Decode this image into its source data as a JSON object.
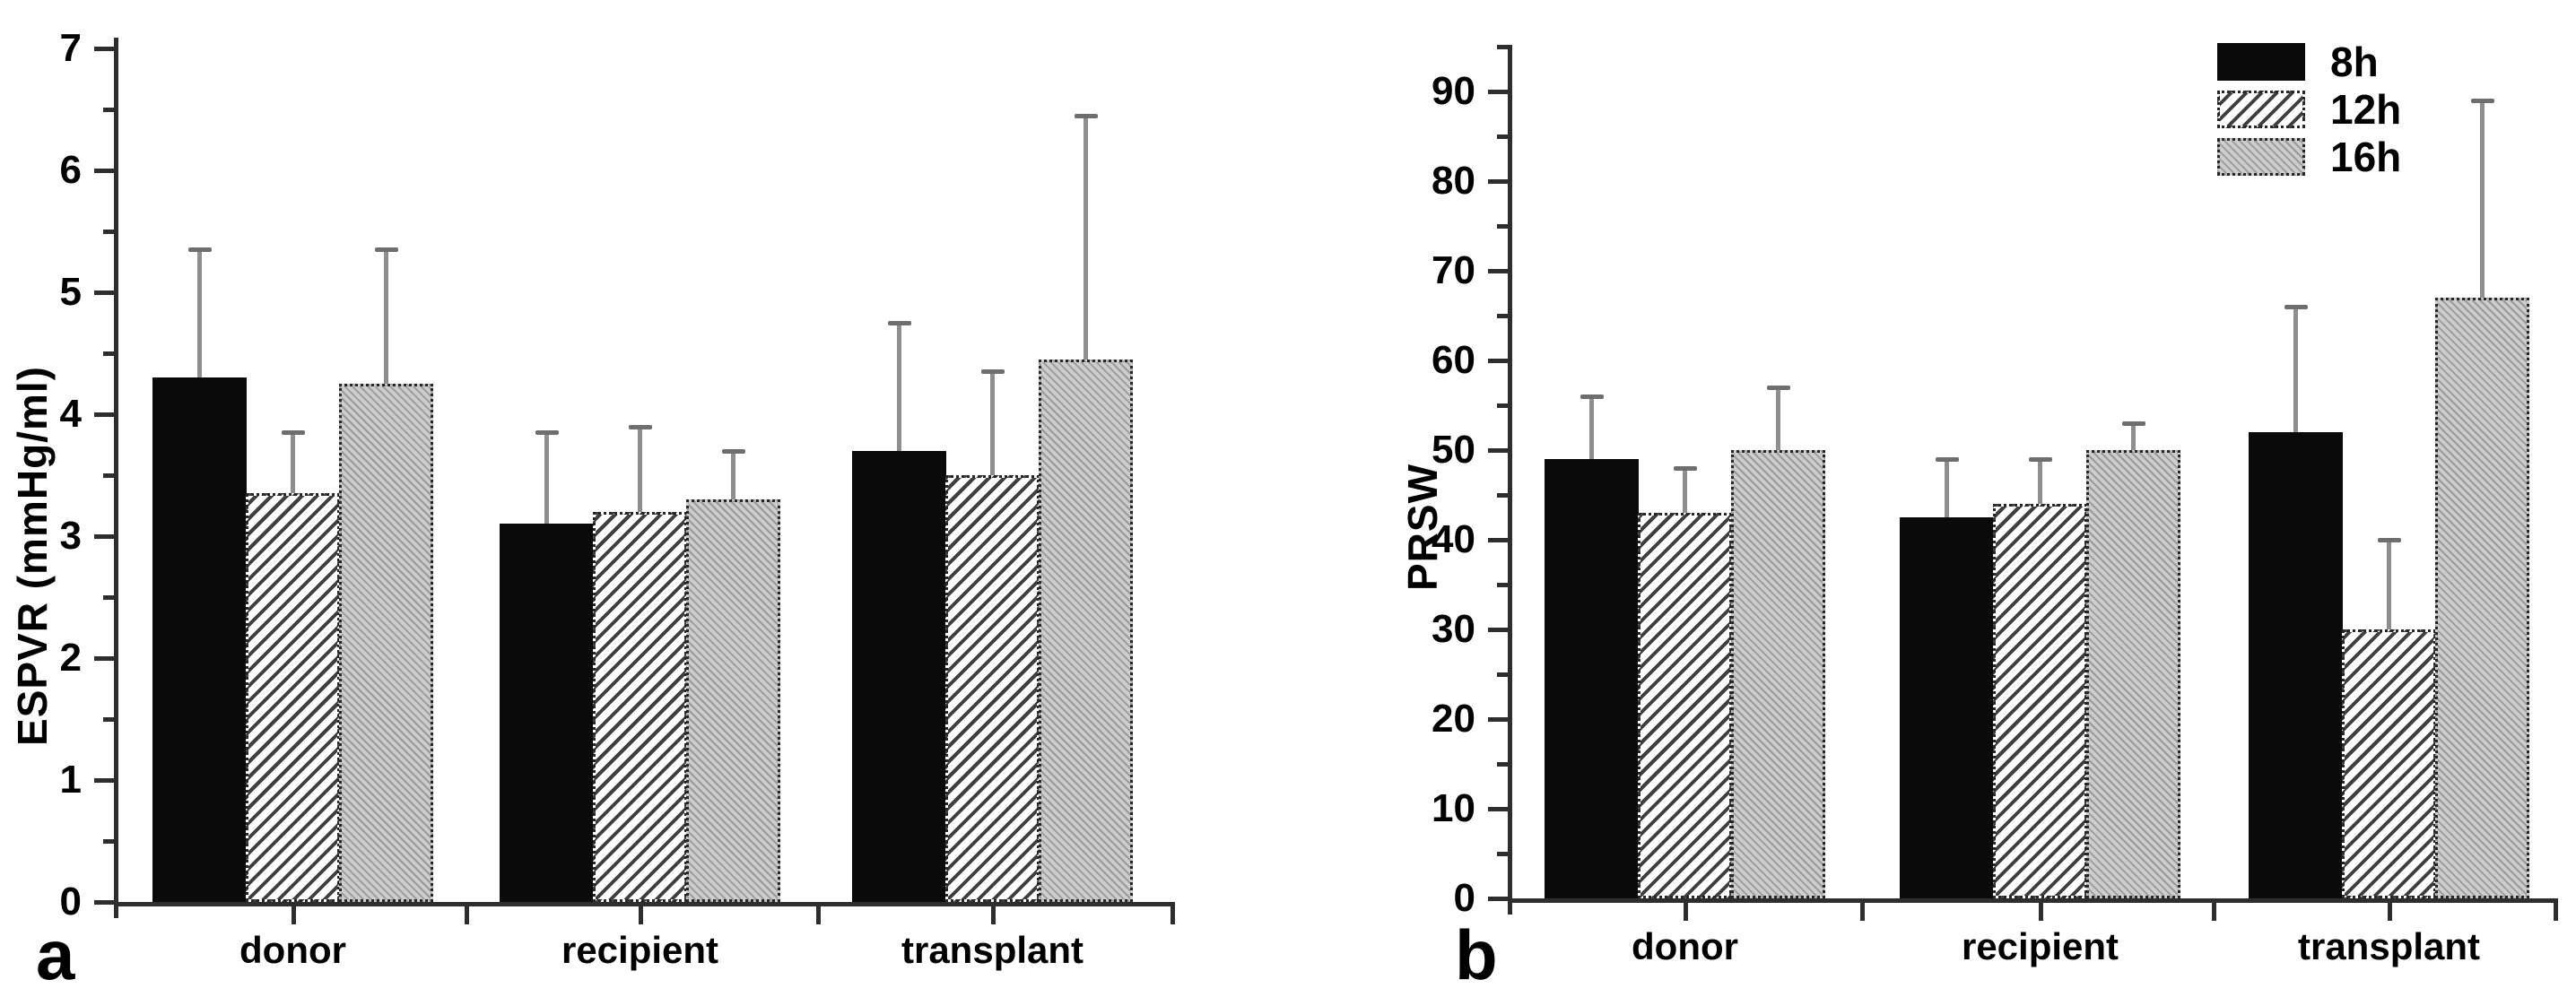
{
  "chart_data": [
    {
      "id": "a",
      "type": "bar",
      "panel_letter": "a",
      "ylabel": "ESPVR (mmHg/ml)",
      "xlabel": "",
      "categories": [
        "donor",
        "recipient",
        "transplant"
      ],
      "series": [
        {
          "name": "8h",
          "pattern": "solid-black",
          "values": [
            4.3,
            3.1,
            3.7
          ],
          "errors_plus": [
            1.05,
            0.75,
            1.05
          ]
        },
        {
          "name": "12h",
          "pattern": "diagonal-hatch-white",
          "values": [
            3.35,
            3.2,
            3.5
          ],
          "errors_plus": [
            0.5,
            0.7,
            0.85
          ]
        },
        {
          "name": "16h",
          "pattern": "fine-hatch-gray",
          "values": [
            4.25,
            3.3,
            4.45
          ],
          "errors_plus": [
            1.1,
            0.4,
            2.0
          ]
        }
      ],
      "ylim": [
        0,
        7
      ],
      "ytick_step": 1,
      "yminor_step": 0.5,
      "grid": false,
      "legend": false
    },
    {
      "id": "b",
      "type": "bar",
      "panel_letter": "b",
      "ylabel": "PRSW",
      "xlabel": "",
      "categories": [
        "donor",
        "recipient",
        "transplant"
      ],
      "series": [
        {
          "name": "8h",
          "pattern": "solid-black",
          "values": [
            49,
            42.5,
            52
          ],
          "errors_plus": [
            7,
            6.5,
            14
          ]
        },
        {
          "name": "12h",
          "pattern": "diagonal-hatch-white",
          "values": [
            43,
            44,
            30
          ],
          "errors_plus": [
            5,
            5,
            10
          ]
        },
        {
          "name": "16h",
          "pattern": "fine-hatch-gray",
          "values": [
            50,
            50,
            67
          ],
          "errors_plus": [
            7,
            3,
            22
          ]
        }
      ],
      "ylim": [
        0,
        90
      ],
      "ytick_step": 10,
      "yminor_step": 5,
      "grid": false,
      "legend": true,
      "legend_position": "top-right"
    }
  ],
  "legend": {
    "items": [
      {
        "label": "8h",
        "pattern": "solid-black"
      },
      {
        "label": "12h",
        "pattern": "diagonal-hatch-white"
      },
      {
        "label": "16h",
        "pattern": "fine-hatch-gray"
      }
    ]
  },
  "colors": {
    "background": "#ffffff",
    "text": "#000000",
    "axis": "#2e2e2e",
    "bar_black": "#0a0a0a",
    "hatch_stripe": "#3f3f3f",
    "gray_fill": "#cdcdcd",
    "gray_stripe": "#9a9a9a",
    "bar_border": "#262626",
    "error_stem": "#8e8e8e",
    "error_cap": "#6e6e6e"
  }
}
